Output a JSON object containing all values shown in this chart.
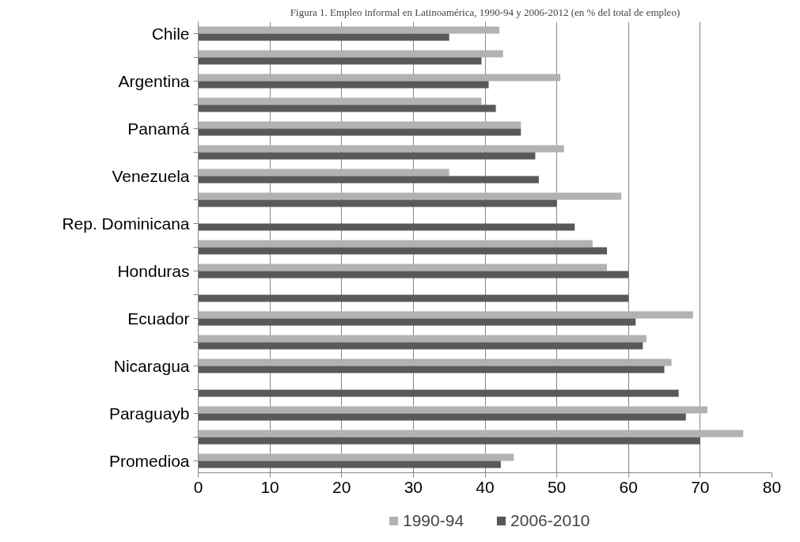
{
  "chart_data": {
    "type": "bar",
    "orientation": "horizontal",
    "title": "Figura 1. Empleo informal en Latinoamérica, 1990-94 y 2006-2012 (en % del total de empleo)",
    "categories": [
      "Chile",
      null,
      "Argentina",
      null,
      "Panamá",
      null,
      "Venezuela",
      null,
      "Rep. Dominicana",
      null,
      "Honduras",
      null,
      "Ecuador",
      null,
      "Nicaragua",
      null,
      "Paraguayb",
      null,
      "Promedioa"
    ],
    "series": [
      {
        "name": "1990-94",
        "color": "#b2b2b2",
        "values": [
          42,
          42.5,
          50.5,
          39.5,
          45,
          51,
          35,
          59,
          null,
          55,
          57,
          null,
          69,
          62.5,
          66,
          null,
          71,
          76,
          44
        ]
      },
      {
        "name": "2006-2010",
        "color": "#595959",
        "values": [
          35,
          39.5,
          40.5,
          41.5,
          45,
          47,
          47.5,
          50,
          52.5,
          57,
          60,
          60,
          61,
          62,
          65,
          67,
          68,
          70,
          42.2
        ]
      }
    ],
    "xlim": [
      0,
      80
    ],
    "xticks": [
      0,
      10,
      20,
      30,
      40,
      50,
      60,
      70,
      80
    ],
    "grid": "x",
    "legend": "bottom"
  }
}
